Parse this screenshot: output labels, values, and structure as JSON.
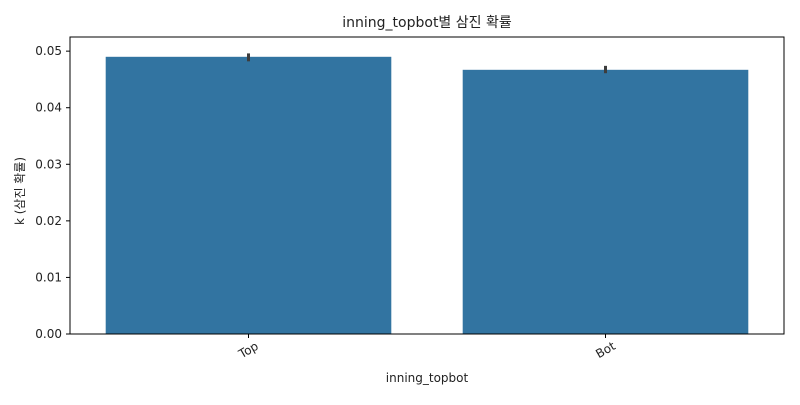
{
  "chart_data": {
    "type": "bar",
    "title": "inning_topbot별 삼진 확률",
    "xlabel": "inning_topbot",
    "ylabel": "k (삼진 확률)",
    "categories": [
      "Top",
      "Bot"
    ],
    "values": [
      0.049,
      0.0467
    ],
    "error_bars": [
      {
        "low": 0.0482,
        "high": 0.0496
      },
      {
        "low": 0.0461,
        "high": 0.0474
      }
    ],
    "ylim": [
      0,
      0.0525
    ],
    "yticks": [
      0.0,
      0.01,
      0.02,
      0.03,
      0.04,
      0.05
    ],
    "ytick_labels": [
      "0.00",
      "0.01",
      "0.02",
      "0.03",
      "0.04",
      "0.05"
    ],
    "grid": false,
    "bar_color": "#3274a1",
    "errorbar_color": "#3d3d3d",
    "axis_color": "#000000"
  }
}
